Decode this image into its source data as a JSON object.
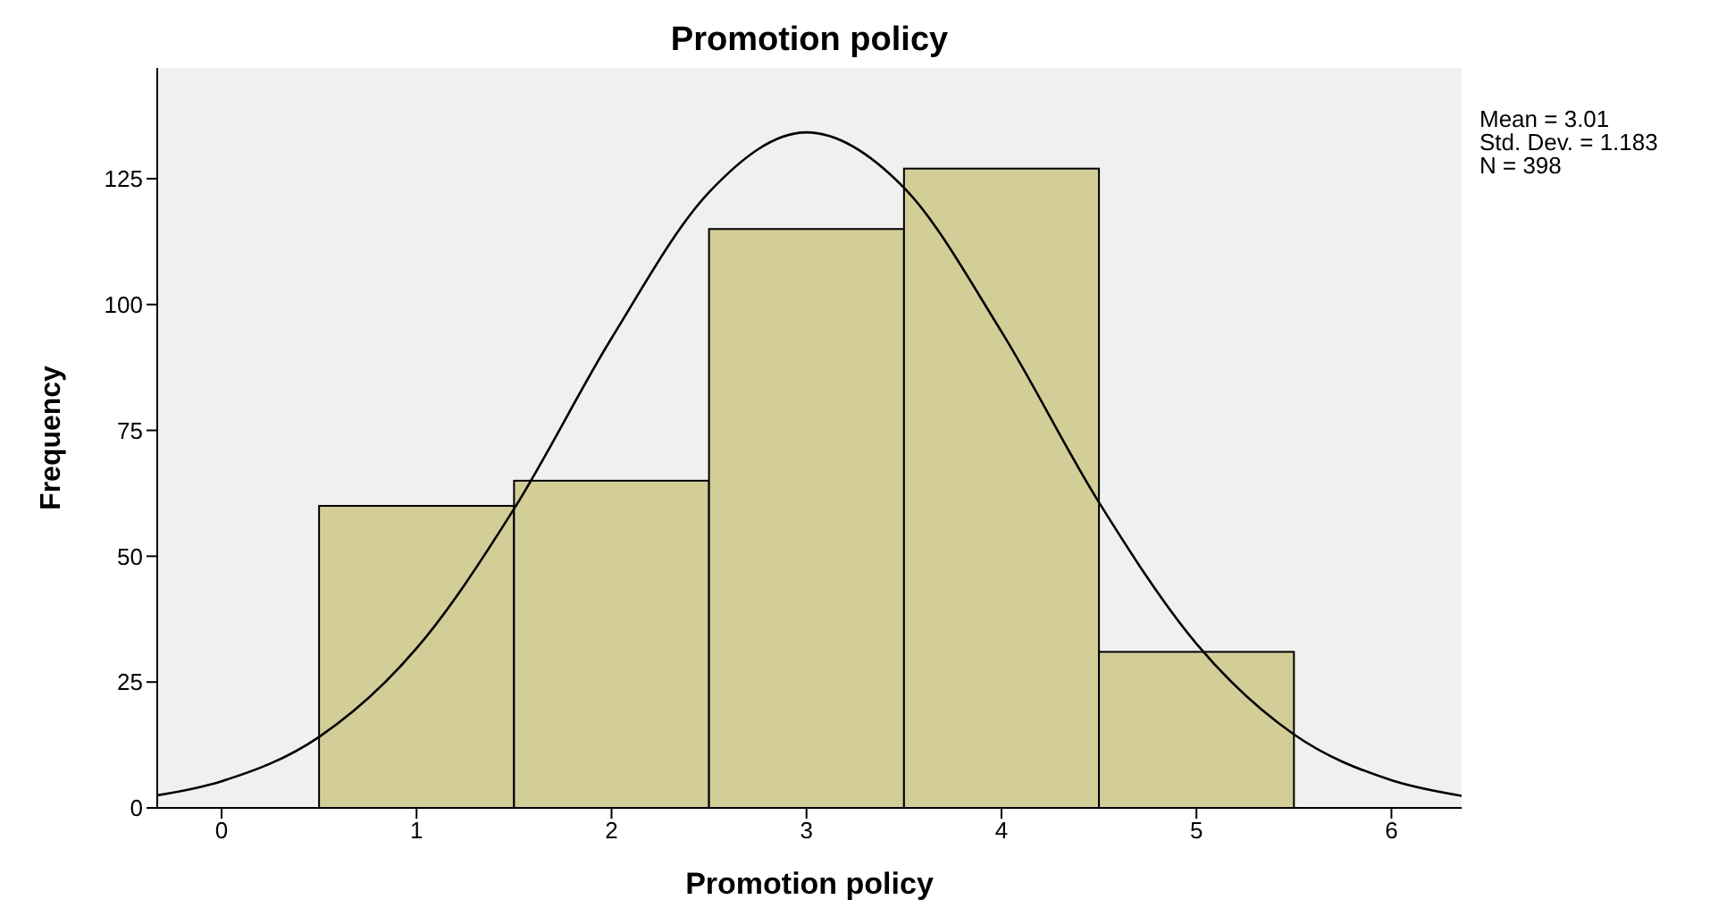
{
  "chart_data": {
    "type": "histogram",
    "title": "Promotion policy",
    "xlabel": "Promotion policy",
    "ylabel": "Frequency",
    "bins": [
      0.5,
      1.5,
      2.5,
      3.5,
      4.5,
      5.5
    ],
    "values": [
      60,
      65,
      115,
      127,
      31
    ],
    "color": "#d3cd98",
    "series": [
      {
        "type": "line",
        "color": "#000000",
        "x": [
          -0.33,
          0,
          0.5,
          1,
          1.5,
          2,
          2.5,
          3,
          3.5,
          4,
          4.5,
          5,
          5.5,
          6,
          6.36
        ],
        "values": [
          2.5,
          5.3,
          14.1,
          31.7,
          59.4,
          93.3,
          122.3,
          134.2,
          123.2,
          94.6,
          60.7,
          32.6,
          14.6,
          5.5,
          2.4
        ]
      }
    ],
    "xlim": [
      -0.33,
      6.36
    ],
    "xticks": [
      0,
      1,
      2,
      3,
      4,
      5,
      6
    ],
    "ylim": [
      0,
      147
    ],
    "yticks": [
      0,
      25,
      50,
      75,
      100,
      125
    ],
    "annotations": [
      "Mean = 3.01",
      "Std. Dev. = 1.183",
      "N = 398"
    ],
    "grid": false,
    "marker": "none"
  }
}
